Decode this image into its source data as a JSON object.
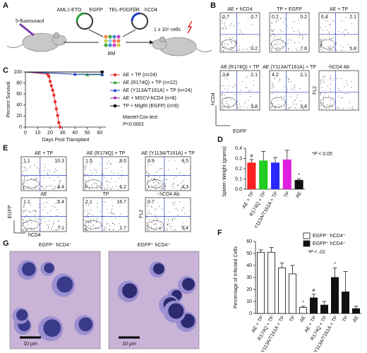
{
  "panel_labels": [
    "A",
    "B",
    "C",
    "D",
    "E",
    "F",
    "G"
  ],
  "schematic": {
    "drug": "5-fluorouracil",
    "plasmid_1": [
      "AML1-ETO",
      "EGFP"
    ],
    "plasmid_2": [
      "TEL-PDGFβR",
      "hCD4"
    ],
    "marrow": "BM",
    "dose": "1 x 10⁶ cells"
  },
  "flow_b": {
    "y_label": "hCD4",
    "x_label": "EGFP",
    "fl2_label": "FL2",
    "plots": [
      {
        "title": "AE + hCD4",
        "ul": "0.7",
        "ur": "0.7",
        "lr": "0.2"
      },
      {
        "title": "TP + EGFP",
        "ul": "0.2",
        "ur": "0.2",
        "lr": "7.6"
      },
      {
        "title": "AE + TP",
        "ul": "6.4",
        "ur": "2.1",
        "lr": "5.8"
      },
      {
        "title": "AE (R174Q) + TP",
        "ul": "3.8",
        "ur": "2.1",
        "lr": "3.8"
      },
      {
        "title": "AE (Y113A/T161A) + TP",
        "ul": "4.2",
        "ur": "2.1",
        "lr": "3.8"
      },
      {
        "title": "-hCD4 Ab"
      }
    ]
  },
  "flow_e": {
    "y_label": "EGFP",
    "x_label": "hCD4",
    "fl2_label": "FL2",
    "plots": [
      {
        "title": "AE + TP",
        "ul": "1.1",
        "ur": "10.3",
        "lr": "4.4"
      },
      {
        "title": "AE (R174Q) + TP",
        "ul": "1.5",
        "ur": "8.0",
        "lr": "6.2"
      },
      {
        "title": "AE (Y113A/T161A) + TP",
        "ul": "0.9",
        "ur": "8.5",
        "lr": "4.3"
      },
      {
        "title": "AE",
        "ul": "1.1",
        "ur": "5.4",
        "lr": "7.1"
      },
      {
        "title": "TP",
        "ul": "2.1",
        "ur": "16.7",
        "lr": "1.7"
      },
      {
        "title": "- hCD4 Ab",
        "ul": "0.7",
        "lr": "3.4"
      }
    ]
  },
  "images_g": [
    {
      "title": "EGFP⁻ hCD4⁺",
      "scale": "10 µm"
    },
    {
      "title": "EGFP⁺ hCD4⁺",
      "scale": "10 µm"
    }
  ],
  "chart_data": [
    {
      "type": "line",
      "y_label": "Percent Survival",
      "x_label": "Days Post Transplant",
      "xlim": [
        0,
        65
      ],
      "xticks": [
        0,
        10,
        20,
        30,
        40,
        50,
        60
      ],
      "ylim": [
        0,
        100
      ],
      "yticks": [
        0,
        20,
        40,
        60,
        80,
        100
      ],
      "annotations": [
        "Mantel-Cox test",
        "P<0.0001"
      ],
      "series": [
        {
          "name": "AE + TP (n=24)",
          "color": "#e8322b",
          "marker": "circle",
          "x": [
            0,
            18,
            19,
            20,
            21,
            22,
            23,
            24,
            25,
            26,
            27,
            28
          ],
          "values": [
            100,
            96,
            92,
            83,
            75,
            67,
            58,
            46,
            33,
            21,
            8,
            0
          ]
        },
        {
          "name": "AE (R174Q) + TP (n=22)",
          "color": "#2ca02c",
          "marker": "triangle",
          "x": [
            0,
            50,
            62
          ],
          "values": [
            100,
            95,
            95
          ]
        },
        {
          "name": "AE (Y113A/T161A) + TP (n=24)",
          "color": "#1f3fcf",
          "marker": "triangle",
          "x": [
            0,
            40,
            62
          ],
          "values": [
            100,
            96,
            96
          ]
        },
        {
          "name": "AE + MSCV-hCD4 (n=8)",
          "color": "#9a2aa8",
          "marker": "triangle-down",
          "x": [
            0,
            62
          ],
          "values": [
            100,
            100
          ]
        },
        {
          "name": "TP + MigRI (EGFP) (n=8)",
          "color": "#111111",
          "marker": "square",
          "x": [
            0,
            62
          ],
          "values": [
            100,
            100
          ]
        }
      ]
    },
    {
      "type": "bar",
      "y_label": "Spleen Weight (grams)",
      "stats_note": "*P < 0.05",
      "categories": [
        "AE + TP",
        "R174Q + TP",
        "Y113A/T161A + TP",
        "TP",
        "AE"
      ],
      "values": [
        0.26,
        0.28,
        0.26,
        0.29,
        0.09
      ],
      "errors": [
        0.03,
        0.09,
        0.05,
        0.09,
        0.01
      ],
      "colors": [
        "#ff2020",
        "#22cc22",
        "#2a2aff",
        "#e020e0",
        "#111111"
      ],
      "value_annotations": [
        "#",
        null,
        null,
        null,
        "*"
      ],
      "ylim": [
        0,
        0.4
      ],
      "yticks": [
        {
          "value": 0,
          "label": "0.0"
        },
        0.1,
        0.2,
        0.3,
        0.4
      ]
    },
    {
      "type": "grouped_bar",
      "y_label": "Percentage of Infected Cells",
      "stats_note": "*P < .01",
      "categories": [
        "AE + TP",
        "R174Q + TP",
        "Y113A/T161A + TP",
        "TP",
        "AE"
      ],
      "ylim": [
        0,
        60
      ],
      "yticks": [
        0,
        10,
        20,
        30,
        40,
        50,
        60
      ],
      "series": [
        {
          "name": "EGFP⁻ hCD4⁺",
          "color": "#ffffff",
          "values": [
            51,
            51,
            38,
            33,
            5
          ],
          "errors": [
            2,
            4,
            4,
            7,
            1
          ],
          "annotations": [
            null,
            null,
            null,
            null,
            "*"
          ]
        },
        {
          "name": "EGFP⁺ hCD4⁺",
          "color": "#111111",
          "values": [
            13,
            7,
            30,
            18,
            4
          ],
          "errors": [
            3,
            3,
            8,
            17,
            2
          ],
          "annotations": [
            "#",
            null,
            "*",
            null,
            null
          ]
        }
      ]
    }
  ]
}
